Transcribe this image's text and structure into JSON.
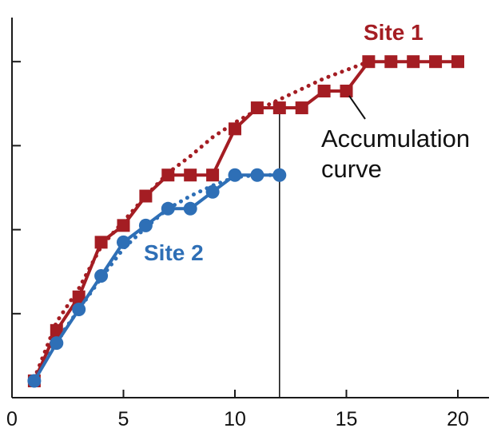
{
  "chart_data": {
    "type": "line",
    "title": "",
    "xlabel": "",
    "ylabel": "",
    "xlim": [
      0,
      21
    ],
    "ylim": [
      0,
      10
    ],
    "xticks": [
      0,
      5,
      10,
      15,
      20
    ],
    "yticks": [
      2,
      4,
      6,
      8
    ],
    "ytick_labels_shown": false,
    "grid": false,
    "colors": {
      "site1": "#a41d23",
      "site2": "#2e6fb6",
      "axis": "#1a1a1a",
      "annotation": "#111111"
    },
    "series": [
      {
        "name": "Site 1",
        "marker": "square",
        "x": [
          1,
          2,
          3,
          4,
          5,
          6,
          7,
          8,
          9,
          10,
          11,
          12,
          13,
          14,
          15,
          16,
          17,
          18,
          19,
          20
        ],
        "values": [
          0.4,
          1.6,
          2.4,
          3.7,
          4.1,
          4.8,
          5.3,
          5.3,
          5.3,
          6.4,
          6.9,
          6.9,
          6.9,
          7.3,
          7.3,
          8.0,
          8.0,
          8.0,
          8.0,
          8.0
        ],
        "fit_line": {
          "x": [
            1,
            2,
            3,
            4,
            5,
            6,
            7,
            8,
            9,
            10,
            11,
            12,
            13,
            14,
            15,
            16
          ],
          "values": [
            0.45,
            1.8,
            2.6,
            3.6,
            4.2,
            4.8,
            5.35,
            5.75,
            6.2,
            6.55,
            6.85,
            7.1,
            7.35,
            7.6,
            7.8,
            8.0
          ]
        }
      },
      {
        "name": "Site 2",
        "marker": "circle",
        "x": [
          1,
          2,
          3,
          4,
          5,
          6,
          7,
          8,
          9,
          10,
          11,
          12
        ],
        "values": [
          0.4,
          1.3,
          2.1,
          2.9,
          3.7,
          4.1,
          4.5,
          4.5,
          4.9,
          5.3,
          5.3,
          5.3
        ],
        "fit_line": {
          "x": [
            1,
            2,
            3,
            4,
            5,
            6,
            7,
            8,
            9,
            10,
            11,
            12
          ],
          "values": [
            0.45,
            1.35,
            2.1,
            2.85,
            3.55,
            4.05,
            4.5,
            4.8,
            5.05,
            5.25,
            5.3,
            5.3
          ]
        }
      }
    ],
    "reference_line": {
      "x": 12
    },
    "annotations": [
      {
        "id": "site1",
        "text": "Site 1"
      },
      {
        "id": "site2",
        "text": "Site 2"
      },
      {
        "id": "accum1",
        "text": "Accumulation"
      },
      {
        "id": "accum2",
        "text": "curve"
      }
    ]
  }
}
